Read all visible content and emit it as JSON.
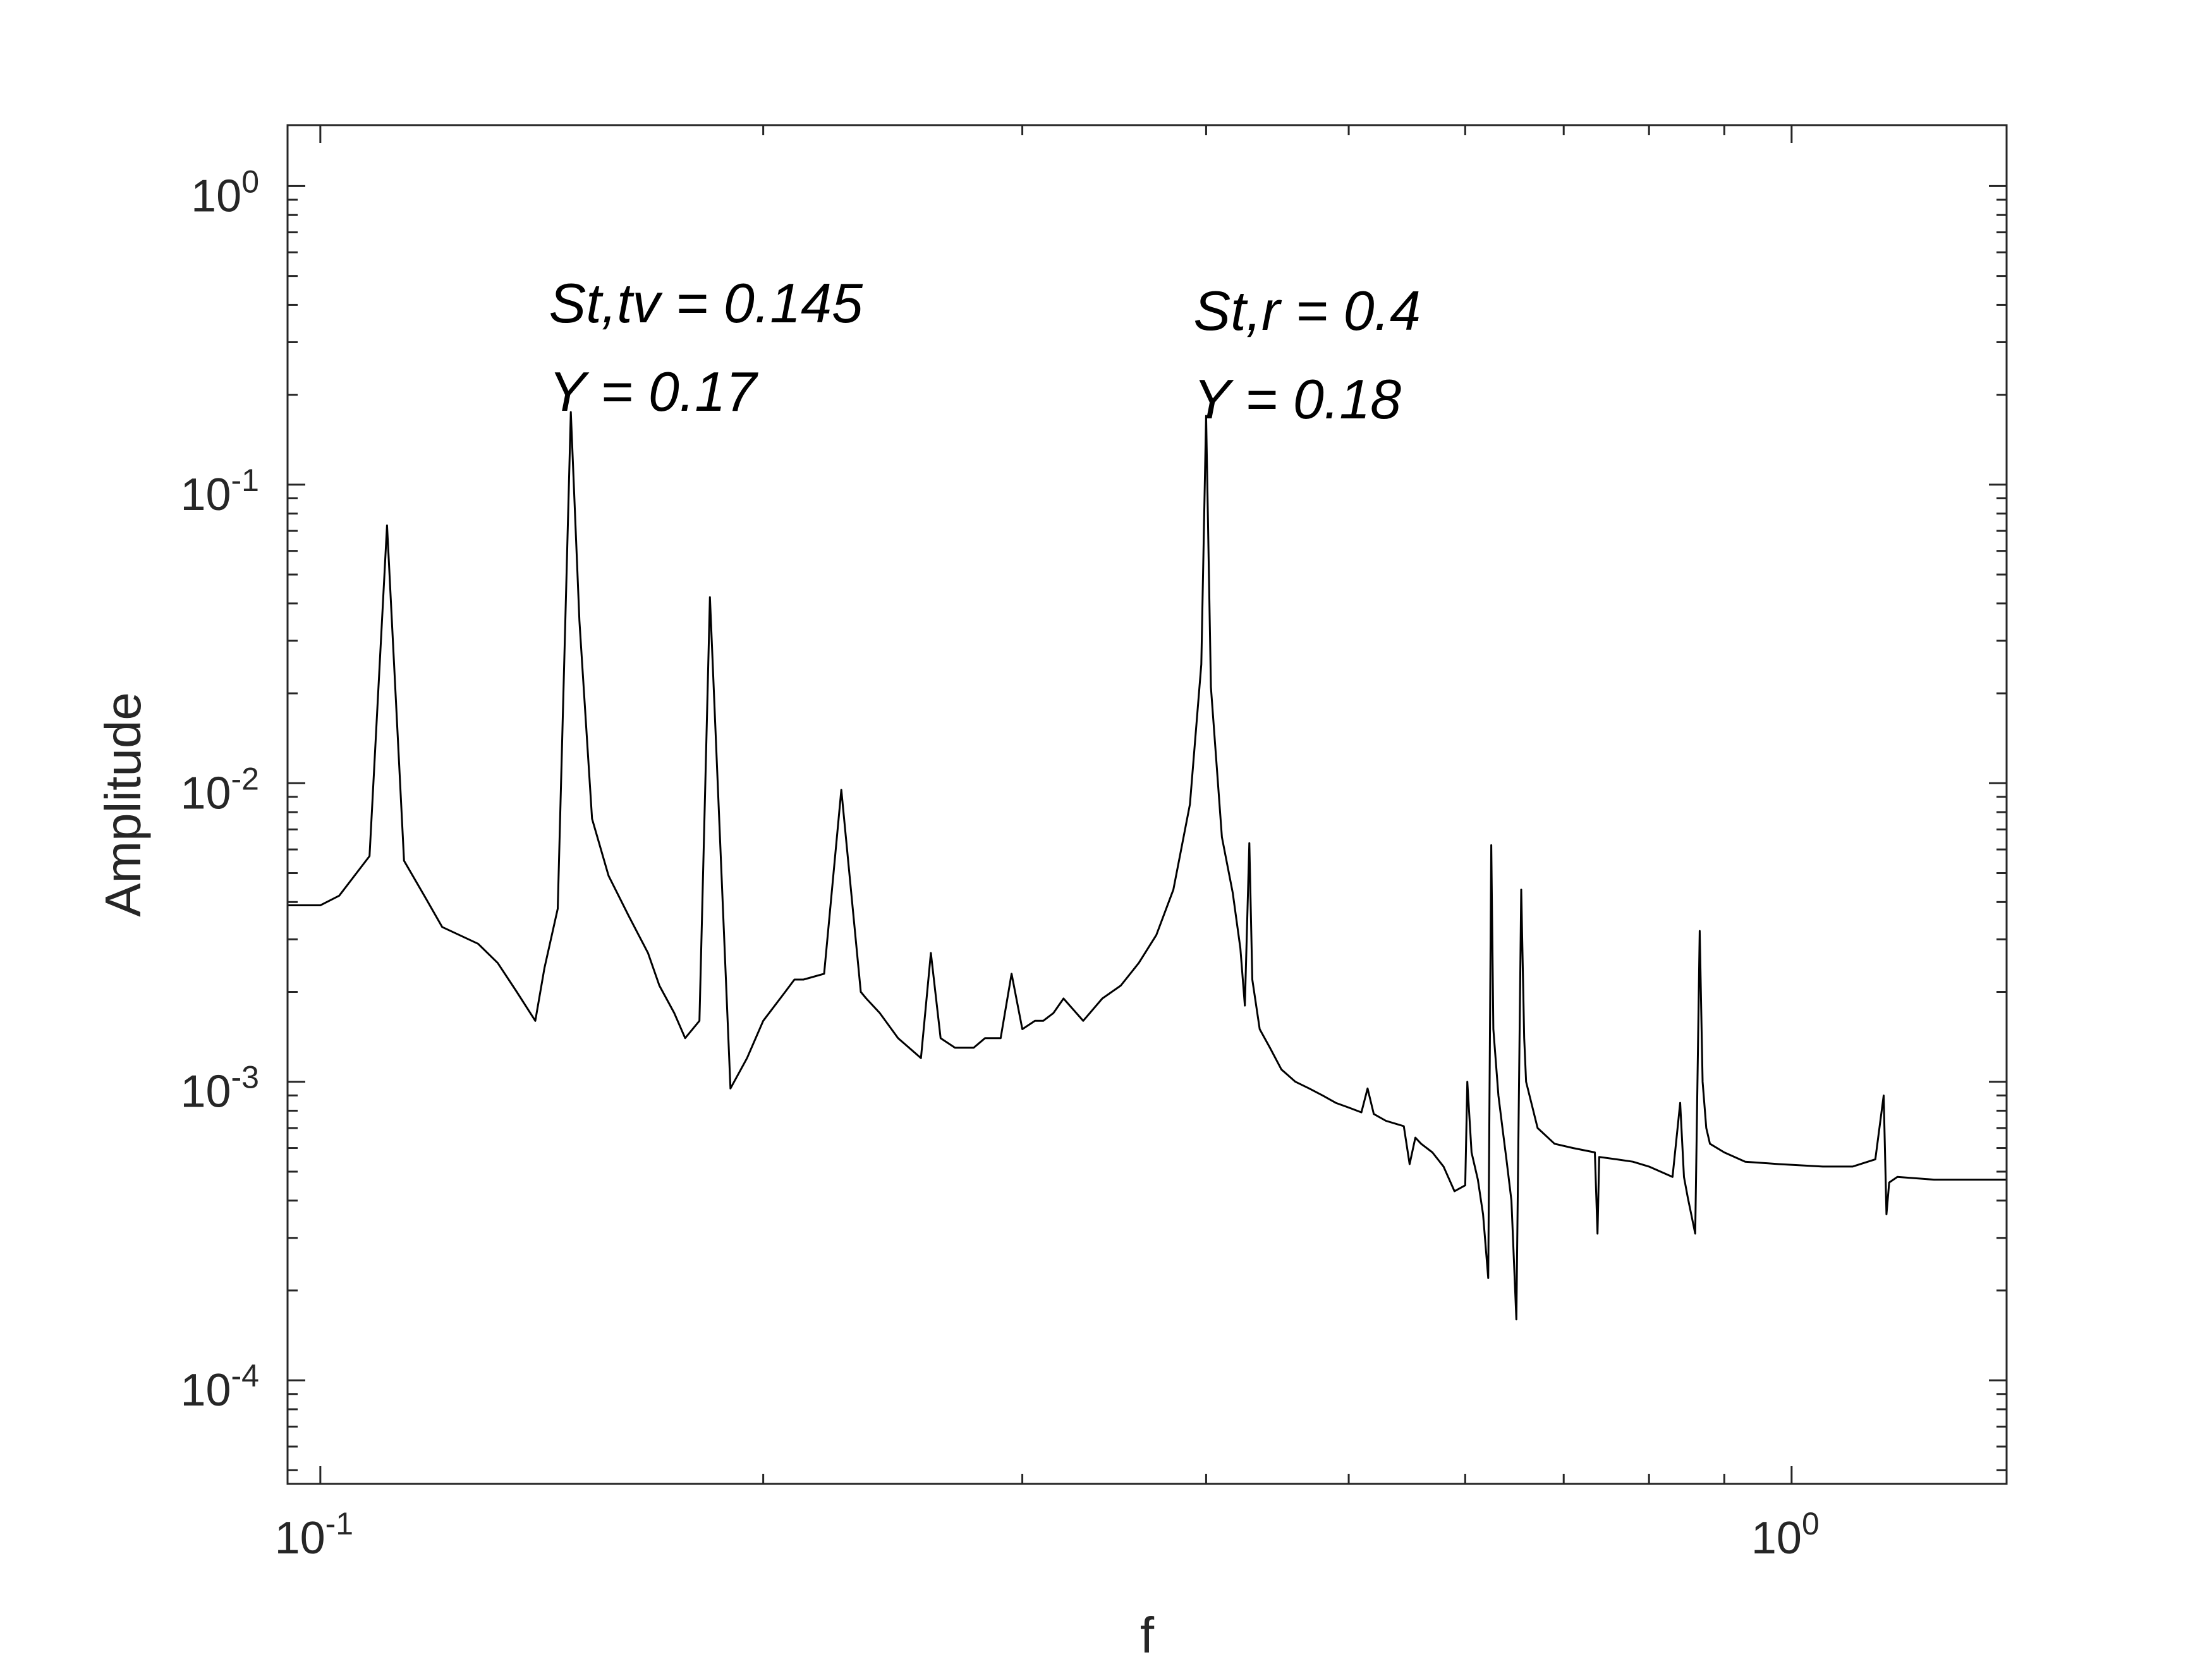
{
  "chart_data": {
    "type": "line",
    "xlabel": "f",
    "ylabel": "Amplitude",
    "x_scale": "log",
    "y_scale": "log",
    "xlim": [
      0.095,
      1.4
    ],
    "ylim": [
      4.5e-05,
      1.6
    ],
    "x_tick_labels": [
      {
        "value": 0.1,
        "base": "10",
        "exp": "-1"
      },
      {
        "value": 1.0,
        "base": "10",
        "exp": "0"
      }
    ],
    "y_tick_labels": [
      {
        "value": 1,
        "base": "10",
        "exp": "0"
      },
      {
        "value": 0.1,
        "base": "10",
        "exp": "-1"
      },
      {
        "value": 0.01,
        "base": "10",
        "exp": "-2"
      },
      {
        "value": 0.001,
        "base": "10",
        "exp": "-3"
      },
      {
        "value": 0.0001,
        "base": "10",
        "exp": "-4"
      }
    ],
    "grid": false,
    "line_color": "#000000",
    "annotations": [
      {
        "lines": [
          "St,tv = 0.145",
          "Y = 0.17"
        ],
        "x": 0.145,
        "y": 0.35
      },
      {
        "lines": [
          "St,r = 0.4",
          "Y = 0.18"
        ],
        "x": 0.4,
        "y": 0.33
      }
    ],
    "series": [
      {
        "x": [
          0.095,
          0.1,
          0.103,
          0.108,
          0.111,
          0.114,
          0.118,
          0.121,
          0.128,
          0.132,
          0.136,
          0.14,
          0.142,
          0.145,
          0.148,
          0.15,
          0.153,
          0.157,
          0.162,
          0.167,
          0.17,
          0.174,
          0.177,
          0.181,
          0.184,
          0.19,
          0.195,
          0.2,
          0.207,
          0.21,
          0.213,
          0.22,
          0.226,
          0.233,
          0.235,
          0.24,
          0.247,
          0.256,
          0.26,
          0.264,
          0.27,
          0.274,
          0.278,
          0.283,
          0.29,
          0.295,
          0.3,
          0.306,
          0.31,
          0.315,
          0.32,
          0.33,
          0.34,
          0.35,
          0.36,
          0.37,
          0.38,
          0.39,
          0.397,
          0.4,
          0.403,
          0.41,
          0.417,
          0.422,
          0.425,
          0.428,
          0.43,
          0.435,
          0.442,
          0.45,
          0.46,
          0.47,
          0.48,
          0.49,
          0.5,
          0.51,
          0.515,
          0.52,
          0.53,
          0.545,
          0.55,
          0.555,
          0.56,
          0.57,
          0.58,
          0.59,
          0.6,
          0.602,
          0.606,
          0.612,
          0.617,
          0.622,
          0.625,
          0.627,
          0.632,
          0.636,
          0.64,
          0.645,
          0.65,
          0.655,
          0.658,
          0.66,
          0.672,
          0.69,
          0.71,
          0.735,
          0.738,
          0.74,
          0.76,
          0.78,
          0.8,
          0.83,
          0.84,
          0.845,
          0.85,
          0.86,
          0.866,
          0.87,
          0.875,
          0.88,
          0.9,
          0.93,
          0.98,
          1.05,
          1.1,
          1.14,
          1.155,
          1.16,
          1.165,
          1.18,
          1.25,
          1.4
        ],
        "y": [
          0.0039,
          0.0039,
          0.0042,
          0.0057,
          0.073,
          0.0055,
          0.0041,
          0.0033,
          0.0029,
          0.0025,
          0.002,
          0.0016,
          0.0024,
          0.0038,
          0.175,
          0.035,
          0.0076,
          0.0049,
          0.0036,
          0.0027,
          0.0021,
          0.0017,
          0.0014,
          0.0016,
          0.042,
          0.00095,
          0.0012,
          0.0016,
          0.002,
          0.0022,
          0.0022,
          0.0023,
          0.0095,
          0.002,
          0.0019,
          0.0017,
          0.0014,
          0.0012,
          0.0027,
          0.0014,
          0.0013,
          0.0013,
          0.0013,
          0.0014,
          0.0014,
          0.0023,
          0.0015,
          0.0016,
          0.0016,
          0.0017,
          0.0019,
          0.0016,
          0.0019,
          0.0021,
          0.0025,
          0.0031,
          0.0044,
          0.0085,
          0.025,
          0.17,
          0.021,
          0.0066,
          0.0043,
          0.0028,
          0.0018,
          0.0063,
          0.0022,
          0.0015,
          0.0013,
          0.0011,
          0.001,
          0.00095,
          0.0009,
          0.00085,
          0.00082,
          0.00079,
          0.00095,
          0.00078,
          0.00074,
          0.00071,
          0.00053,
          0.00065,
          0.00062,
          0.00058,
          0.00052,
          0.00043,
          0.00045,
          0.001,
          0.00058,
          0.00047,
          0.00036,
          0.00022,
          0.0062,
          0.0015,
          0.0009,
          0.0007,
          0.00055,
          0.0004,
          0.00016,
          0.0044,
          0.0014,
          0.001,
          0.0007,
          0.00062,
          0.0006,
          0.00058,
          0.00031,
          0.00056,
          0.00055,
          0.00054,
          0.00052,
          0.00048,
          0.00085,
          0.00048,
          0.00041,
          0.00031,
          0.0032,
          0.001,
          0.0007,
          0.00062,
          0.00058,
          0.00054,
          0.00053,
          0.00052,
          0.00052,
          0.00055,
          0.0009,
          0.00036,
          0.00046,
          0.00048,
          0.00047,
          0.00047
        ]
      }
    ]
  }
}
